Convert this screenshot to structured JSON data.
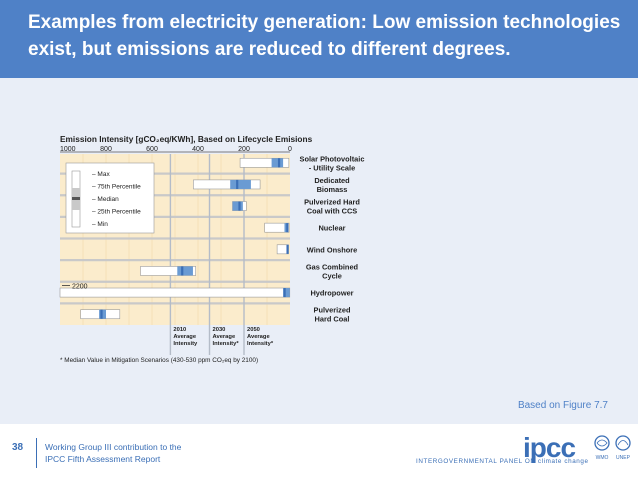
{
  "header": {
    "title": "Examples from electricity generation: Low emission technologies exist, but emissions are reduced to different degrees."
  },
  "source_note": "Based on Figure 7.7",
  "footer": {
    "page_number": "38",
    "line1": "Working Group III contribution to the",
    "line2": "IPCC Fifth Assessment Report",
    "logo_text": "ipcc",
    "tagline": "INTERGOVERNMENTAL PANEL ON climate change",
    "emblem1": "WMO",
    "emblem2": "UNEP"
  },
  "colors": {
    "header_bg": "#4f81c7",
    "content_bg": "#e9eef7",
    "chart_bg": "#fbeccc",
    "median": "#3b6fb6"
  },
  "chart_data": {
    "type": "boxplot-horizontal",
    "title": "Emission Intensity [gCO₂eq/KWh], Based on Lifecycle Emisions",
    "x_ticks": [
      1000,
      800,
      600,
      400,
      200,
      0
    ],
    "x_range": [
      1000,
      0
    ],
    "legend": [
      "Max",
      "75th Percentile",
      "Median",
      "25th Percentile",
      "Min"
    ],
    "items": [
      {
        "label": "Solar Photovoltaic - Utility Scale",
        "min": 5,
        "p25": 30,
        "median": 48,
        "p75": 80,
        "max": 217
      },
      {
        "label": "Dedicated Biomass",
        "min": 130,
        "p25": 170,
        "median": 230,
        "p75": 260,
        "max": 420
      },
      {
        "label": "Pulverized Hard Coal with CCS",
        "min": 190,
        "p25": 205,
        "median": 220,
        "p75": 250,
        "max": 250
      },
      {
        "label": "Nuclear",
        "min": 4,
        "p25": 8,
        "median": 12,
        "p75": 24,
        "max": 110
      },
      {
        "label": "Wind Onshore",
        "min": 7,
        "p25": 8,
        "median": 11,
        "p75": 15,
        "max": 56
      },
      {
        "label": "Gas Combined Cycle",
        "min": 410,
        "p25": 422,
        "median": 469,
        "p75": 490,
        "max": 650
      },
      {
        "label": "Hydropower",
        "min": 1,
        "p25": 1,
        "median": 24,
        "p75": 30,
        "max": 2200
      },
      {
        "label": "Pulverized Hard Coal",
        "min": 740,
        "p25": 800,
        "median": 820,
        "p75": 830,
        "max": 910
      }
    ],
    "break_label": "2200",
    "scenario_lines": [
      {
        "label": "2010 Average Intensity",
        "value": 520
      },
      {
        "label": "2030 Average Intensity*",
        "value": 350
      },
      {
        "label": "2050 Average Intensity*",
        "value": 200
      }
    ],
    "footnote": "* Median Value in Mitigation Scenarios (430-530 ppm CO₂eq by 2100)"
  }
}
